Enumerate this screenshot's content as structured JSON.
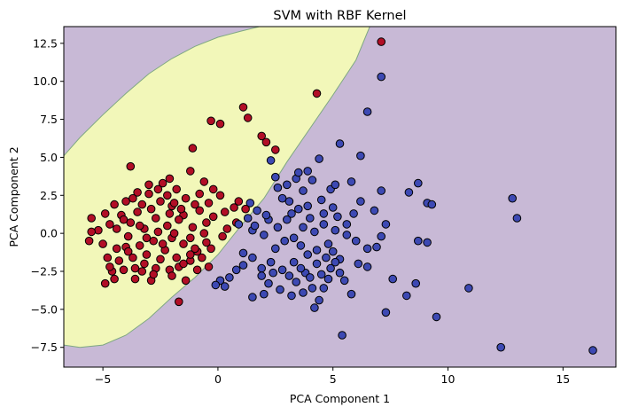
{
  "chart_data": {
    "type": "scatter",
    "title": "SVM with RBF Kernel",
    "xlabel": "PCA Component 1",
    "ylabel": "PCA Component 2",
    "xlim": [
      -6.7,
      17.3
    ],
    "ylim": [
      -8.8,
      13.6
    ],
    "x_ticks": [
      -5,
      0,
      5,
      10,
      15
    ],
    "x_tick_labels": [
      "−5",
      "0",
      "5",
      "10",
      "15"
    ],
    "y_ticks": [
      -7.5,
      -5.0,
      -2.5,
      0.0,
      2.5,
      5.0,
      7.5,
      10.0,
      12.5
    ],
    "y_tick_labels": [
      "−7.5",
      "−5.0",
      "−2.5",
      "0.0",
      "2.5",
      "5.0",
      "7.5",
      "10.0",
      "12.5"
    ],
    "grid": false,
    "colors": {
      "region_class_0": "#f2f7b9",
      "region_class_1": "#c8b9d6",
      "boundary": "#7fa882",
      "class_0": "#b20e26",
      "class_1": "#3d49b3",
      "marker_edge": "#000000"
    },
    "decision_boundary": {
      "description_points": [
        [
          -6.7,
          -7.35
        ],
        [
          -6.0,
          -7.5
        ],
        [
          -5.0,
          -7.35
        ],
        [
          -4.0,
          -6.7
        ],
        [
          -3.0,
          -5.6
        ],
        [
          -2.0,
          -4.2
        ],
        [
          -1.0,
          -2.9
        ],
        [
          0.0,
          -1.4
        ],
        [
          1.0,
          0.5
        ],
        [
          2.0,
          2.3
        ],
        [
          3.0,
          4.7
        ],
        [
          4.0,
          6.9
        ],
        [
          5.0,
          9.1
        ],
        [
          6.0,
          11.4
        ],
        [
          6.6,
          13.6
        ]
      ],
      "upper_points": [
        [
          -6.7,
          5.1
        ],
        [
          -6.0,
          6.3
        ],
        [
          -5.0,
          7.8
        ],
        [
          -4.0,
          9.2
        ],
        [
          -3.0,
          10.5
        ],
        [
          -2.0,
          11.5
        ],
        [
          -1.0,
          12.3
        ],
        [
          0.0,
          12.9
        ],
        [
          1.0,
          13.3
        ],
        [
          1.8,
          13.6
        ]
      ]
    },
    "series": [
      {
        "class": 0,
        "points": [
          [
            7.1,
            12.6
          ],
          [
            4.3,
            9.2
          ],
          [
            1.1,
            8.3
          ],
          [
            1.3,
            7.6
          ],
          [
            -0.3,
            7.4
          ],
          [
            0.1,
            7.2
          ],
          [
            1.9,
            6.4
          ],
          [
            2.1,
            6.0
          ],
          [
            2.5,
            5.5
          ],
          [
            -1.1,
            5.6
          ],
          [
            -3.8,
            4.4
          ],
          [
            -1.2,
            4.1
          ],
          [
            -0.6,
            3.4
          ],
          [
            -5.5,
            1.0
          ],
          [
            -5.6,
            -0.5
          ],
          [
            -4.9,
            -3.3
          ],
          [
            -4.5,
            -3.0
          ],
          [
            -4.6,
            -2.5
          ],
          [
            -3.6,
            -3.0
          ],
          [
            -3.3,
            -2.5
          ],
          [
            -2.9,
            -3.1
          ],
          [
            -2.7,
            -2.3
          ],
          [
            -2.1,
            -2.4
          ],
          [
            -1.7,
            -2.2
          ],
          [
            -1.2,
            -1.8
          ],
          [
            -0.9,
            -1.2
          ],
          [
            -0.5,
            -0.6
          ],
          [
            0.2,
            -0.2
          ],
          [
            0.4,
            0.3
          ],
          [
            0.8,
            0.7
          ],
          [
            0.7,
            1.7
          ],
          [
            0.9,
            2.1
          ],
          [
            0.1,
            2.5
          ],
          [
            -0.4,
            2.0
          ],
          [
            -0.8,
            1.5
          ],
          [
            -1.5,
            1.2
          ],
          [
            -2.0,
            1.8
          ],
          [
            -2.5,
            2.1
          ],
          [
            -3.0,
            2.6
          ],
          [
            -3.5,
            2.7
          ],
          [
            -4.0,
            2.1
          ],
          [
            -4.5,
            1.9
          ],
          [
            -4.2,
            1.2
          ],
          [
            -3.8,
            0.7
          ],
          [
            -3.2,
            0.3
          ],
          [
            -2.6,
            0.1
          ],
          [
            -2.0,
            -0.3
          ],
          [
            -1.5,
            -0.7
          ],
          [
            -1.0,
            -1.0
          ],
          [
            -2.3,
            -1.1
          ],
          [
            -3.1,
            -1.4
          ],
          [
            -3.7,
            -1.6
          ],
          [
            -4.3,
            -1.8
          ],
          [
            -4.8,
            -1.6
          ],
          [
            -5.0,
            -0.7
          ],
          [
            -5.2,
            0.2
          ],
          [
            -4.7,
            0.6
          ],
          [
            -3.9,
            -0.2
          ],
          [
            -3.4,
            -0.8
          ],
          [
            -2.8,
            -0.5
          ],
          [
            -2.2,
            0.5
          ],
          [
            -1.7,
            0.9
          ],
          [
            -1.1,
            0.4
          ],
          [
            -0.6,
            0.0
          ],
          [
            -0.2,
            1.1
          ],
          [
            -1.4,
            2.3
          ],
          [
            -2.9,
            1.6
          ],
          [
            -3.5,
            1.4
          ],
          [
            -1.8,
            2.9
          ],
          [
            -2.4,
            3.3
          ],
          [
            -3.2,
            -2.0
          ],
          [
            -2.0,
            -2.8
          ],
          [
            -1.4,
            -3.1
          ],
          [
            -4.1,
            -2.4
          ],
          [
            -0.9,
            -2.4
          ],
          [
            -1.7,
            -4.5
          ],
          [
            -0.7,
            -1.6
          ],
          [
            -0.3,
            -1.0
          ],
          [
            -1.9,
            0.0
          ],
          [
            -2.7,
            1.0
          ],
          [
            -3.3,
            1.9
          ],
          [
            -4.4,
            0.3
          ],
          [
            -4.0,
            -0.9
          ],
          [
            -2.5,
            -1.7
          ],
          [
            -1.2,
            -0.3
          ],
          [
            -0.8,
            2.6
          ],
          [
            -2.2,
            2.5
          ],
          [
            -3.7,
            2.3
          ],
          [
            0.3,
            1.4
          ],
          [
            -1.6,
            1.6
          ],
          [
            -0.2,
            2.9
          ],
          [
            1.2,
            1.6
          ],
          [
            -5.5,
            0.1
          ],
          [
            -3.0,
            3.2
          ],
          [
            -2.6,
            2.9
          ],
          [
            -3.9,
            -1.2
          ],
          [
            -2.8,
            -2.7
          ],
          [
            -1.5,
            -2.0
          ],
          [
            -0.4,
            -2.2
          ],
          [
            -1.2,
            -1.4
          ],
          [
            -4.7,
            -2.2
          ],
          [
            -2.1,
            1.3
          ],
          [
            -3.4,
            0.5
          ],
          [
            -4.9,
            1.3
          ],
          [
            -4.4,
            -1.0
          ],
          [
            -1.0,
            1.9
          ],
          [
            -0.5,
            0.7
          ],
          [
            -3.6,
            -2.3
          ],
          [
            -2.4,
            -0.7
          ],
          [
            -1.8,
            -1.6
          ],
          [
            -3.1,
            -0.3
          ],
          [
            -2.1,
            3.6
          ],
          [
            -1.9,
            2.0
          ],
          [
            -4.1,
            0.9
          ]
        ]
      },
      {
        "class": 1,
        "points": [
          [
            7.1,
            10.3
          ],
          [
            6.5,
            8.0
          ],
          [
            5.3,
            5.9
          ],
          [
            2.3,
            4.8
          ],
          [
            2.5,
            3.7
          ],
          [
            4.4,
            4.9
          ],
          [
            6.2,
            5.1
          ],
          [
            2.6,
            3.0
          ],
          [
            3.0,
            3.2
          ],
          [
            3.4,
            3.6
          ],
          [
            3.5,
            4.0
          ],
          [
            3.9,
            4.1
          ],
          [
            4.1,
            3.5
          ],
          [
            3.7,
            2.8
          ],
          [
            4.5,
            2.2
          ],
          [
            4.9,
            2.9
          ],
          [
            5.1,
            3.2
          ],
          [
            5.8,
            3.4
          ],
          [
            6.2,
            2.1
          ],
          [
            7.1,
            2.8
          ],
          [
            8.3,
            2.7
          ],
          [
            8.7,
            3.3
          ],
          [
            9.1,
            2.0
          ],
          [
            9.3,
            1.9
          ],
          [
            12.8,
            2.3
          ],
          [
            13.0,
            1.0
          ],
          [
            1.4,
            2.0
          ],
          [
            1.7,
            1.5
          ],
          [
            1.3,
            1.0
          ],
          [
            0.9,
            0.6
          ],
          [
            1.5,
            0.2
          ],
          [
            2.0,
            -0.1
          ],
          [
            2.6,
            0.4
          ],
          [
            3.0,
            0.9
          ],
          [
            3.5,
            1.6
          ],
          [
            4.0,
            1.0
          ],
          [
            4.6,
            0.6
          ],
          [
            5.1,
            0.2
          ],
          [
            5.6,
            -0.1
          ],
          [
            6.0,
            -0.5
          ],
          [
            6.5,
            -1.0
          ],
          [
            7.3,
            0.6
          ],
          [
            7.1,
            -0.2
          ],
          [
            8.7,
            -0.5
          ],
          [
            9.1,
            -0.6
          ],
          [
            1.5,
            -1.6
          ],
          [
            1.1,
            -2.1
          ],
          [
            0.8,
            -2.4
          ],
          [
            0.5,
            -2.9
          ],
          [
            0.1,
            -3.1
          ],
          [
            0.3,
            -3.5
          ],
          [
            -0.1,
            -3.4
          ],
          [
            1.9,
            -2.3
          ],
          [
            2.3,
            -1.9
          ],
          [
            2.8,
            -2.4
          ],
          [
            3.1,
            -2.8
          ],
          [
            3.4,
            -3.2
          ],
          [
            3.8,
            -2.6
          ],
          [
            4.3,
            -2.0
          ],
          [
            4.7,
            -1.6
          ],
          [
            5.0,
            -1.2
          ],
          [
            4.9,
            -2.3
          ],
          [
            4.5,
            -2.7
          ],
          [
            4.1,
            -3.6
          ],
          [
            3.7,
            -3.9
          ],
          [
            3.2,
            -4.1
          ],
          [
            2.7,
            -3.7
          ],
          [
            2.2,
            -3.3
          ],
          [
            1.9,
            -2.8
          ],
          [
            6.1,
            -2.0
          ],
          [
            6.5,
            -2.2
          ],
          [
            7.6,
            -3.0
          ],
          [
            8.2,
            -4.1
          ],
          [
            8.6,
            -3.3
          ],
          [
            9.5,
            -5.5
          ],
          [
            10.9,
            -3.6
          ],
          [
            12.3,
            -7.5
          ],
          [
            16.3,
            -7.7
          ],
          [
            5.4,
            -6.7
          ],
          [
            4.2,
            -4.9
          ],
          [
            4.4,
            -4.4
          ],
          [
            4.6,
            -3.6
          ],
          [
            5.8,
            -4.0
          ],
          [
            7.3,
            -5.2
          ],
          [
            2.0,
            -4.0
          ],
          [
            1.5,
            -4.2
          ],
          [
            3.3,
            -0.3
          ],
          [
            3.6,
            -0.8
          ],
          [
            3.9,
            -1.4
          ],
          [
            4.3,
            -1.1
          ],
          [
            2.5,
            -1.0
          ],
          [
            2.9,
            -0.5
          ],
          [
            3.2,
            1.3
          ],
          [
            3.9,
            1.8
          ],
          [
            4.6,
            1.3
          ],
          [
            5.2,
            1.1
          ],
          [
            5.3,
            -1.7
          ],
          [
            5.6,
            0.6
          ],
          [
            1.6,
            0.5
          ],
          [
            2.2,
            0.9
          ],
          [
            2.8,
            2.3
          ],
          [
            3.1,
            2.1
          ],
          [
            3.3,
            -1.9
          ],
          [
            3.6,
            -2.3
          ],
          [
            4.0,
            -2.9
          ],
          [
            4.8,
            -3.0
          ],
          [
            5.3,
            -2.6
          ],
          [
            5.5,
            -3.1
          ],
          [
            6.8,
            1.5
          ],
          [
            2.1,
            1.2
          ],
          [
            2.4,
            -2.6
          ],
          [
            1.1,
            -1.3
          ],
          [
            5.0,
            1.7
          ],
          [
            4.2,
            0.1
          ],
          [
            3.7,
            0.4
          ],
          [
            4.8,
            -0.7
          ],
          [
            5.9,
            1.3
          ],
          [
            6.9,
            -0.9
          ],
          [
            5.1,
            -1.9
          ]
        ]
      }
    ]
  }
}
